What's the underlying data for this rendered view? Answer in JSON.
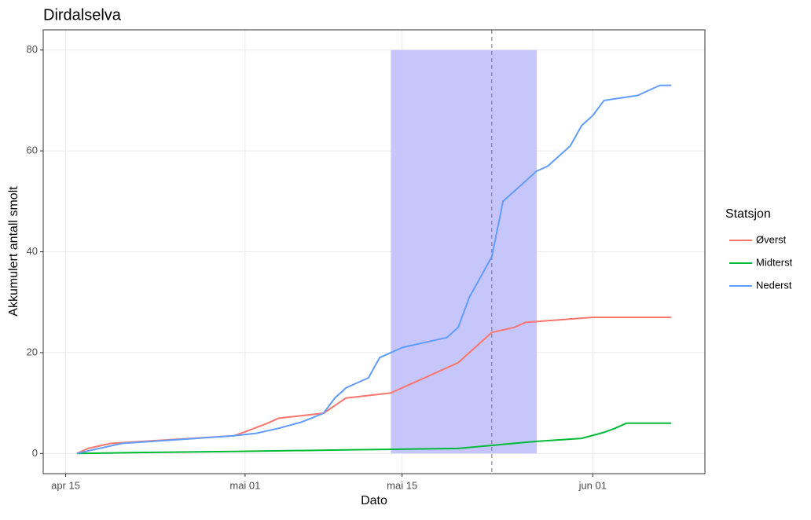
{
  "chart_data": {
    "type": "line",
    "title": "Dirdalselva",
    "x_label": "Dato",
    "y_label": "Akkumulert antall smolt",
    "legend_title": "Statsjon",
    "legend_position": "right",
    "grid": true,
    "xlim": [
      "04-13",
      "06-11"
    ],
    "xticks": [
      {
        "value": "04-15",
        "label": "apr 15"
      },
      {
        "value": "05-01",
        "label": "mai 01"
      },
      {
        "value": "05-15",
        "label": "mai 15"
      },
      {
        "value": "06-01",
        "label": "jun 01"
      }
    ],
    "ylim": [
      -4,
      84
    ],
    "yticks": [
      0,
      20,
      40,
      60,
      80
    ],
    "band": {
      "x": [
        "05-14",
        "05-27"
      ],
      "y": [
        0,
        80
      ],
      "color": "#c6c6fa"
    },
    "vline": {
      "x": "05-23",
      "color": "#7a6e96"
    },
    "series": [
      {
        "name": "Øverst",
        "color": "#f8766d",
        "x": [
          "04-16",
          "04-17",
          "04-19",
          "04-30",
          "05-01",
          "05-03",
          "05-04",
          "05-08",
          "05-10",
          "05-14",
          "05-20",
          "05-23",
          "05-25",
          "05-26",
          "06-01",
          "06-08"
        ],
        "values": [
          0,
          1,
          2,
          3.5,
          4.3,
          6,
          7,
          8,
          11,
          12,
          18,
          24,
          25,
          26,
          27,
          27
        ]
      },
      {
        "name": "Midterst",
        "color": "#00ba38",
        "x": [
          "04-16",
          "04-22",
          "04-30",
          "05-03",
          "05-10",
          "05-20",
          "05-23",
          "05-27",
          "05-31",
          "06-02",
          "06-03",
          "06-04",
          "06-08"
        ],
        "values": [
          0,
          0.2,
          0.4,
          0.5,
          0.7,
          1,
          1.6,
          2.4,
          3,
          4.2,
          5,
          6,
          6
        ]
      },
      {
        "name": "Nederst",
        "color": "#619cff",
        "x": [
          "04-16",
          "04-20",
          "04-30",
          "05-02",
          "05-04",
          "05-06",
          "05-08",
          "05-09",
          "05-10",
          "05-11",
          "05-12",
          "05-13",
          "05-14",
          "05-15",
          "05-19",
          "05-20",
          "05-21",
          "05-22",
          "05-23",
          "05-24",
          "05-27",
          "05-28",
          "05-30",
          "05-31",
          "06-01",
          "06-02",
          "06-05",
          "06-06",
          "06-07",
          "06-08"
        ],
        "values": [
          0,
          2,
          3.5,
          4,
          5,
          6.2,
          8,
          11,
          13,
          14,
          15,
          19,
          20,
          21,
          23,
          25,
          31,
          35,
          39,
          50,
          56,
          57,
          61,
          65,
          67,
          70,
          71,
          72,
          73,
          73
        ]
      }
    ]
  }
}
